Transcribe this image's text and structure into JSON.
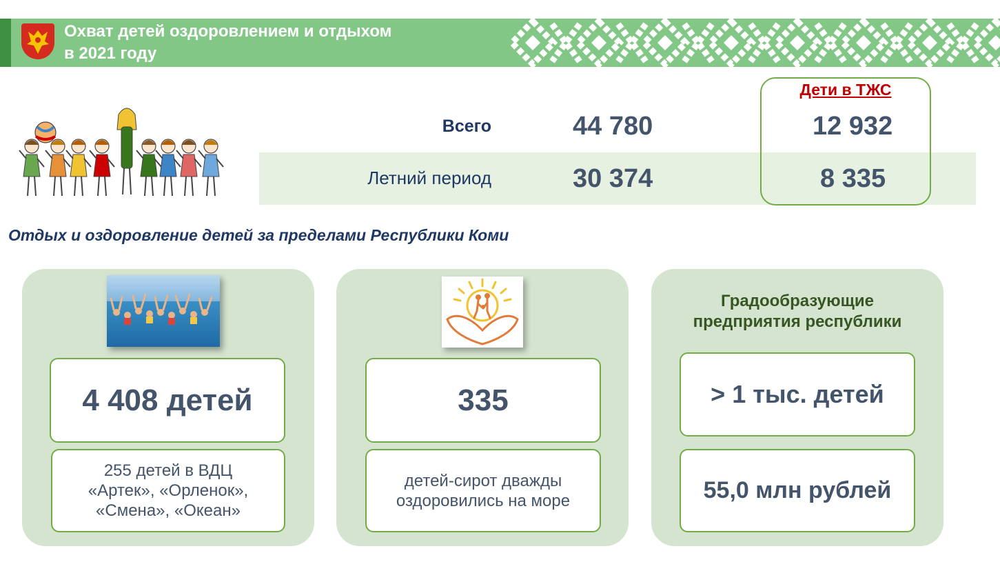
{
  "header": {
    "title_line1": "Охват детей оздоровлением и отдыхом",
    "title_line2": "в 2021 году",
    "emblem": "komi-republic-emblem-icon",
    "colors": {
      "band": "#82c785",
      "edge": "#3f8f43"
    }
  },
  "stats": {
    "tzs_header": "Дети в ТЖС",
    "rows": [
      {
        "label": "Всего",
        "value": "44 780",
        "tzs_value": "12 932"
      },
      {
        "label": "Летний период",
        "value": "30 374",
        "tzs_value": "8 335"
      }
    ]
  },
  "subtitle": "Отдых и оздоровление детей за пределами Республики Коми",
  "panels": [
    {
      "image": "children-in-sea-photo",
      "main_value": "4 408 детей",
      "detail": [
        "255 детей в ВДЦ",
        "«Артек», «Орленок»,",
        "«Смена», «Океан»"
      ]
    },
    {
      "image": "sun-family-heart-logo",
      "main_value": "335",
      "detail": [
        "детей-сирот дважды",
        "оздоровились на море"
      ]
    },
    {
      "title": [
        "Градообразующие",
        "предприятия республики"
      ],
      "main_value": "> 1 тыс. детей",
      "detail": [
        "55,0 млн рублей"
      ]
    }
  ],
  "colors": {
    "green_border": "#70ad47",
    "panel_bg": "#d4e4cf",
    "value_text": "#44546a",
    "navy": "#1f3864",
    "red": "#c00000"
  }
}
